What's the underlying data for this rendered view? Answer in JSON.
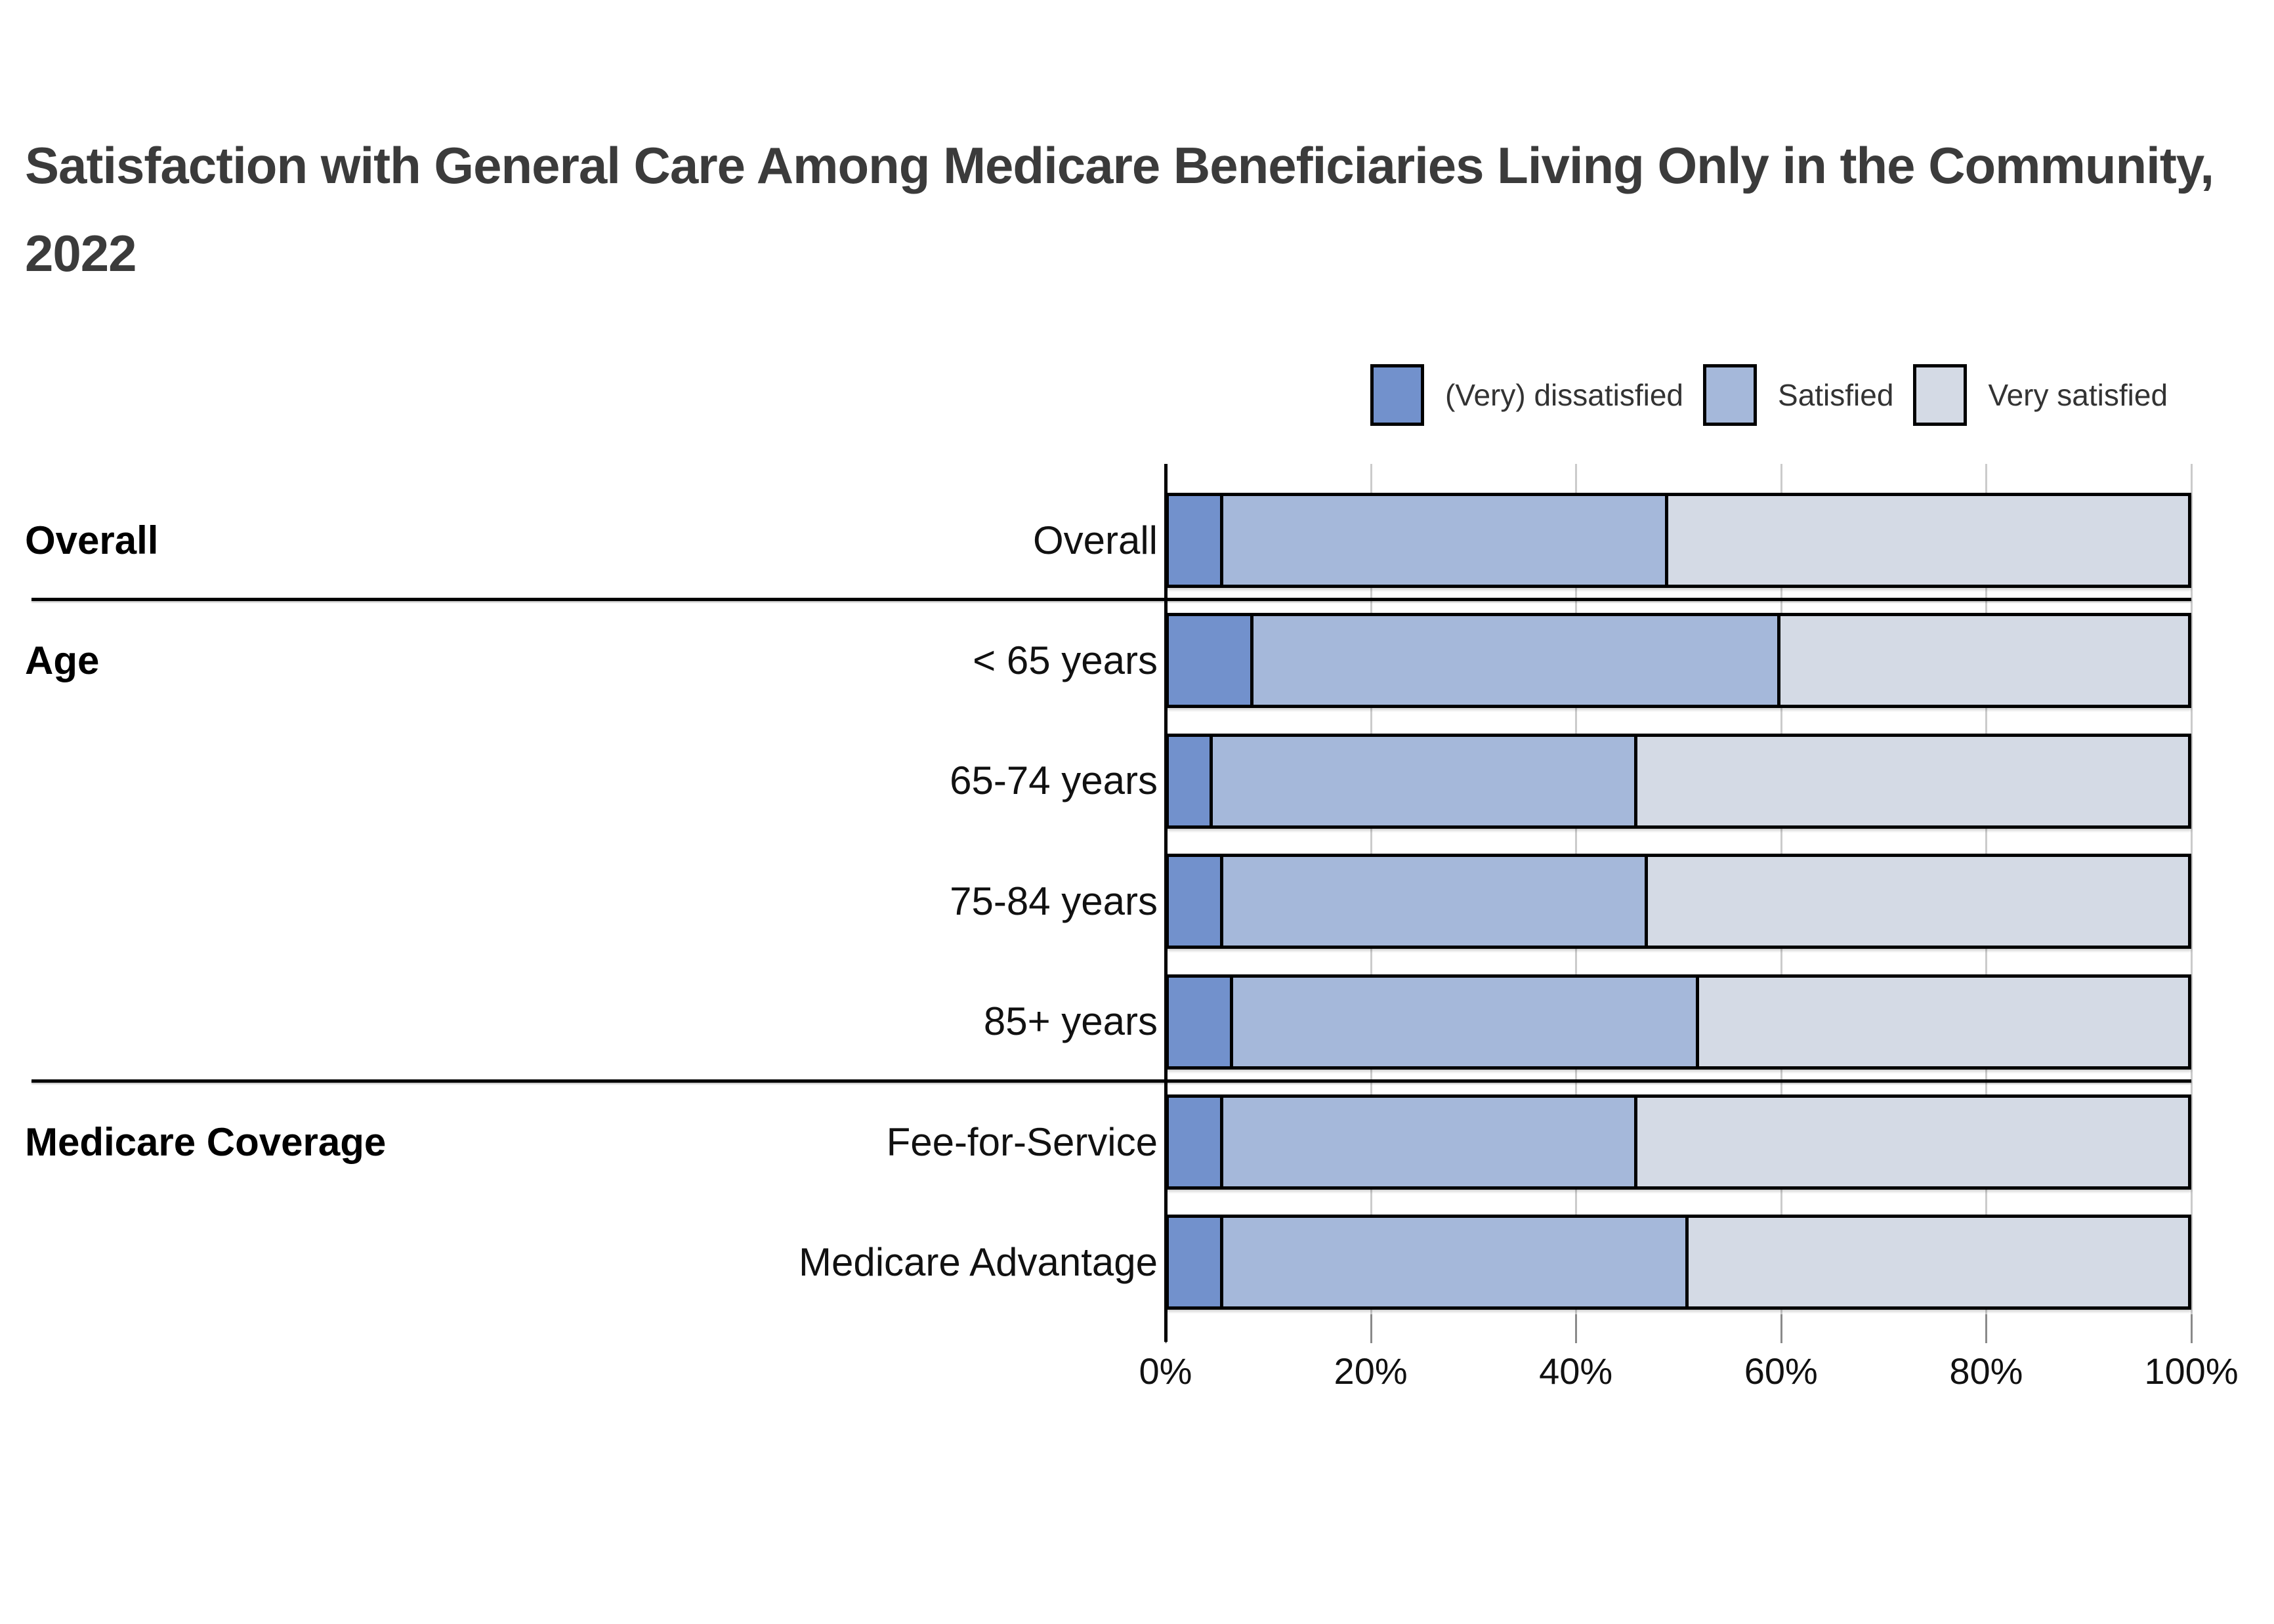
{
  "chart_data": {
    "type": "bar",
    "stacked": true,
    "orientation": "horizontal",
    "title": "Satisfaction with General Care Among Medicare Beneficiaries Living Only in the Community, 2022",
    "unit": "percent",
    "legend_position": "top-right",
    "series": [
      {
        "name": "(Very) dissatisfied",
        "color": "#7291cc"
      },
      {
        "name": "Satisfied",
        "color": "#a5b8da"
      },
      {
        "name": "Very satisfied",
        "color": "#d4dae5"
      }
    ],
    "x_axis": {
      "min": 0,
      "max": 100,
      "tick_labels": [
        "0%",
        "20%",
        "40%",
        "60%",
        "80%",
        "100%"
      ],
      "gridlines": true
    },
    "groups": [
      {
        "label": "Overall",
        "rows": [
          {
            "label": "Overall",
            "values": [
              5,
              44,
              51
            ]
          }
        ]
      },
      {
        "label": "Age",
        "rows": [
          {
            "label": "< 65 years",
            "values": [
              8,
              52,
              40
            ]
          },
          {
            "label": "65-74 years",
            "values": [
              4,
              42,
              54
            ]
          },
          {
            "label": "75-84 years",
            "values": [
              5,
              42,
              53
            ]
          },
          {
            "label": "85+ years",
            "values": [
              6,
              46,
              48
            ]
          }
        ]
      },
      {
        "label": "Medicare Coverage",
        "rows": [
          {
            "label": "Fee-for-Service",
            "values": [
              5,
              41,
              54
            ]
          },
          {
            "label": "Medicare Advantage",
            "values": [
              5,
              46,
              49
            ]
          }
        ]
      }
    ]
  },
  "colors": {
    "title": "#3b3b3b",
    "grid": "#cbcbcb",
    "axis": "#000000",
    "label": "#111111",
    "background": "#ffffff"
  }
}
